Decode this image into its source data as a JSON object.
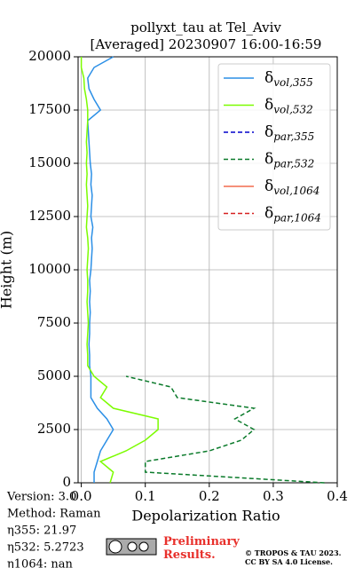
{
  "chart_data": {
    "type": "profile",
    "title": "pollyxt_tau at Tel_Aviv",
    "subtitle": "[Averaged] 20230907 16:00-16:59",
    "x_label": "Depolarization Ratio",
    "y_label": "Height (m)",
    "xlim": [
      -0.005,
      0.4
    ],
    "ylim": [
      0,
      20000
    ],
    "xticks": [
      {
        "value": 0,
        "label": "0.0"
      },
      0.1,
      0.2,
      0.3,
      0.4
    ],
    "yticks": [
      0,
      2500,
      5000,
      7500,
      10000,
      12500,
      15000,
      17500,
      20000
    ],
    "grid": true,
    "legend": "upper right",
    "y": [
      0,
      500,
      1000,
      1500,
      2000,
      2500,
      3000,
      3500,
      4000,
      4500,
      5000,
      5500,
      6000,
      6500,
      7000,
      7500,
      8000,
      8500,
      9000,
      9500,
      10000,
      10500,
      11000,
      11500,
      12000,
      12500,
      13000,
      13500,
      14000,
      14500,
      15000,
      15500,
      16000,
      16500,
      17000,
      17500,
      18000,
      18500,
      19000,
      19500,
      20000
    ],
    "series": [
      {
        "name": "δvol,355",
        "color": "#2b8fe6",
        "dash": false,
        "values": [
          0.02,
          0.02,
          0.025,
          0.03,
          0.04,
          0.05,
          0.04,
          0.025,
          0.015,
          0.015,
          0.015,
          0.013,
          0.013,
          0.012,
          0.013,
          0.013,
          0.014,
          0.013,
          0.014,
          0.013,
          0.015,
          0.016,
          0.017,
          0.016,
          0.018,
          0.015,
          0.016,
          0.017,
          0.015,
          0.016,
          0.014,
          0.013,
          0.012,
          0.011,
          0.01,
          0.03,
          0.02,
          0.012,
          0.01,
          0.02,
          0.05
        ]
      },
      {
        "name": "δvol,532",
        "color": "#7cfc00",
        "dash": false,
        "values": [
          0.045,
          0.05,
          0.03,
          0.07,
          0.1,
          0.12,
          0.12,
          0.05,
          0.03,
          0.04,
          0.02,
          0.01,
          0.01,
          0.009,
          0.01,
          0.011,
          0.01,
          0.009,
          0.01,
          0.01,
          0.009,
          0.01,
          0.011,
          0.01,
          0.008,
          0.009,
          0.01,
          0.009,
          0.008,
          0.009,
          0.008,
          0.009,
          0.008,
          0.009,
          0.01,
          0.01,
          0.008,
          0.005,
          0.004,
          0.0,
          0.0
        ]
      },
      {
        "name": "δpar,355",
        "color": "#0000cc",
        "dash": true,
        "values": [
          null,
          null,
          null,
          null,
          null,
          null,
          null,
          null,
          null,
          null,
          null,
          null,
          null,
          null,
          null,
          null,
          null,
          null,
          null,
          null,
          null,
          null,
          null,
          null,
          null,
          null,
          null,
          null,
          null,
          null,
          null,
          null,
          null,
          null,
          null,
          null,
          null,
          null,
          null,
          null,
          null
        ]
      },
      {
        "name": "δpar,532",
        "color": "#0a7a2a",
        "dash": true,
        "values": [
          0.38,
          0.1,
          0.1,
          0.2,
          0.25,
          0.27,
          0.24,
          0.27,
          0.15,
          0.14,
          0.07,
          null,
          null,
          null,
          null,
          null,
          null,
          null,
          null,
          null,
          null,
          null,
          null,
          null,
          null,
          null,
          null,
          null,
          null,
          null,
          null,
          null,
          null,
          null,
          null,
          null,
          null,
          null,
          null,
          null,
          null
        ]
      },
      {
        "name": "δvol,1064",
        "color": "#f26b4f",
        "dash": false,
        "values": [
          null,
          null,
          null,
          null,
          null,
          null,
          null,
          null,
          null,
          null,
          null,
          null,
          null,
          null,
          null,
          null,
          null,
          null,
          null,
          null,
          null,
          null,
          null,
          null,
          null,
          null,
          null,
          null,
          null,
          null,
          null,
          null,
          null,
          null,
          null,
          null,
          null,
          null,
          null,
          null,
          null
        ]
      },
      {
        "name": "δpar,1064",
        "color": "#d62020",
        "dash": true,
        "values": [
          null,
          null,
          null,
          null,
          null,
          null,
          null,
          null,
          null,
          null,
          null,
          null,
          null,
          null,
          null,
          null,
          null,
          null,
          null,
          null,
          null,
          null,
          null,
          null,
          null,
          null,
          null,
          null,
          null,
          null,
          null,
          null,
          null,
          null,
          null,
          null,
          null,
          null,
          null,
          null,
          null
        ]
      }
    ],
    "annotations": [
      "Version: 3.0",
      "Method: Raman",
      "η355:  21.97",
      "η532: 5.2723",
      "η1064:    nan"
    ],
    "preliminary": "Preliminary Results.",
    "copyright": [
      "© TROPOS & TAU 2023.",
      "CC BY SA 4.0 License."
    ]
  }
}
